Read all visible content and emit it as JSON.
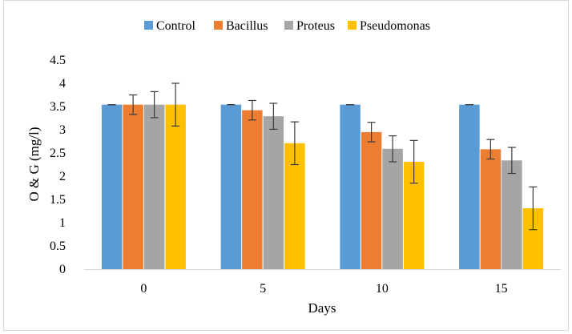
{
  "chart_data": {
    "type": "bar",
    "title": "",
    "xlabel": "Days",
    "ylabel": "O & G (mg/l)",
    "categories": [
      "0",
      "5",
      "10",
      "15"
    ],
    "ylim": [
      0,
      4.5
    ],
    "yticks": [
      "0",
      "0.5",
      "1",
      "1.5",
      "2",
      "2.5",
      "3",
      "3.5",
      "4",
      "4.5"
    ],
    "grid": false,
    "legend_position": "top",
    "series": [
      {
        "name": "Control",
        "color": "#5b9bd5",
        "values": [
          3.54,
          3.54,
          3.54,
          3.54
        ],
        "errors": [
          0.0,
          0.0,
          0.0,
          0.0
        ]
      },
      {
        "name": "Bacillus",
        "color": "#ed7d31",
        "values": [
          3.54,
          3.42,
          2.95,
          2.58
        ],
        "errors": [
          0.21,
          0.21,
          0.21,
          0.21
        ]
      },
      {
        "name": "Proteus",
        "color": "#a5a5a5",
        "values": [
          3.54,
          3.29,
          2.59,
          2.34
        ],
        "errors": [
          0.28,
          0.28,
          0.28,
          0.28
        ]
      },
      {
        "name": "Pseudomonas",
        "color": "#ffc000",
        "values": [
          3.54,
          2.71,
          2.31,
          1.31
        ],
        "errors": [
          0.46,
          0.46,
          0.46,
          0.46
        ]
      }
    ]
  }
}
